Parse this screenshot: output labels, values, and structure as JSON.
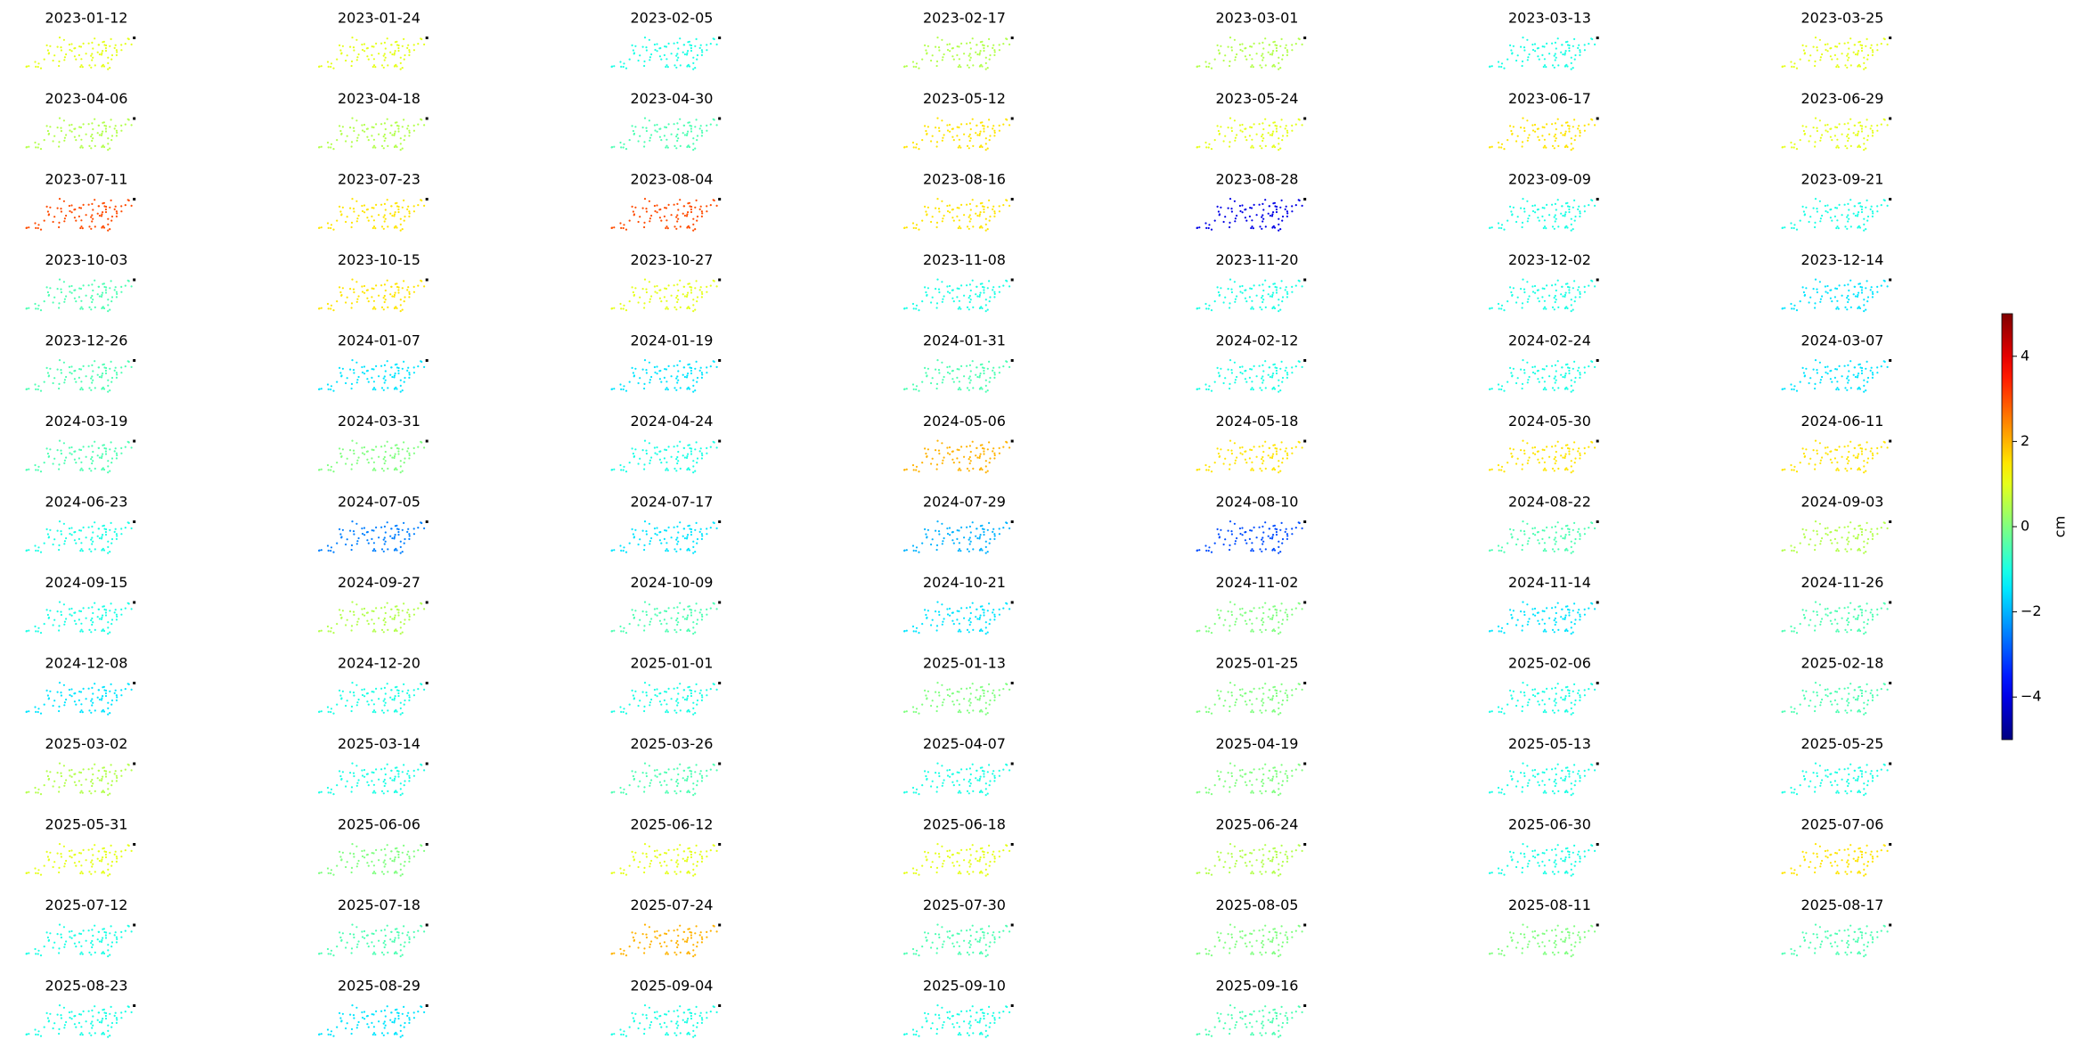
{
  "chart_data": {
    "type": "small-multiples",
    "colormap": "jet",
    "panels": [
      {
        "title": "2023-01-12",
        "value": 1
      },
      {
        "title": "2023-01-24",
        "value": 1
      },
      {
        "title": "2023-02-05",
        "value": -1
      },
      {
        "title": "2023-02-17",
        "value": 0.5
      },
      {
        "title": "2023-03-01",
        "value": 0.5
      },
      {
        "title": "2023-03-13",
        "value": -1
      },
      {
        "title": "2023-03-25",
        "value": 1
      },
      {
        "title": "2023-04-06",
        "value": 0.5
      },
      {
        "title": "2023-04-18",
        "value": 0.5
      },
      {
        "title": "2023-04-30",
        "value": -0.5
      },
      {
        "title": "2023-05-12",
        "value": 1.5
      },
      {
        "title": "2023-05-24",
        "value": 1
      },
      {
        "title": "2023-06-17",
        "value": 1.5
      },
      {
        "title": "2023-06-29",
        "value": 1
      },
      {
        "title": "2023-07-11",
        "value": 3
      },
      {
        "title": "2023-07-23",
        "value": 1.5
      },
      {
        "title": "2023-08-04",
        "value": 3
      },
      {
        "title": "2023-08-16",
        "value": 1.5
      },
      {
        "title": "2023-08-28",
        "value": -4
      },
      {
        "title": "2023-09-09",
        "value": -1
      },
      {
        "title": "2023-09-21",
        "value": -1
      },
      {
        "title": "2023-10-03",
        "value": -0.5
      },
      {
        "title": "2023-10-15",
        "value": 1.5
      },
      {
        "title": "2023-10-27",
        "value": 1
      },
      {
        "title": "2023-11-08",
        "value": -1
      },
      {
        "title": "2023-11-20",
        "value": -1
      },
      {
        "title": "2023-12-02",
        "value": -1
      },
      {
        "title": "2023-12-14",
        "value": -1.5
      },
      {
        "title": "2023-12-26",
        "value": -0.5
      },
      {
        "title": "2024-01-07",
        "value": -1.5
      },
      {
        "title": "2024-01-19",
        "value": -1.5
      },
      {
        "title": "2024-01-31",
        "value": -0.5
      },
      {
        "title": "2024-02-12",
        "value": -1
      },
      {
        "title": "2024-02-24",
        "value": -1
      },
      {
        "title": "2024-03-07",
        "value": -1.5
      },
      {
        "title": "2024-03-19",
        "value": -0.5
      },
      {
        "title": "2024-03-31",
        "value": 0
      },
      {
        "title": "2024-04-24",
        "value": -1
      },
      {
        "title": "2024-05-06",
        "value": 2
      },
      {
        "title": "2024-05-18",
        "value": 1.5
      },
      {
        "title": "2024-05-30",
        "value": 1.5
      },
      {
        "title": "2024-06-11",
        "value": 1.5
      },
      {
        "title": "2024-06-23",
        "value": -1
      },
      {
        "title": "2024-07-05",
        "value": -2.5
      },
      {
        "title": "2024-07-17",
        "value": -1.5
      },
      {
        "title": "2024-07-29",
        "value": -2
      },
      {
        "title": "2024-08-10",
        "value": -3
      },
      {
        "title": "2024-08-22",
        "value": -0.5
      },
      {
        "title": "2024-09-03",
        "value": 0.5
      },
      {
        "title": "2024-09-15",
        "value": -1
      },
      {
        "title": "2024-09-27",
        "value": 0.5
      },
      {
        "title": "2024-10-09",
        "value": -0.5
      },
      {
        "title": "2024-10-21",
        "value": -1.5
      },
      {
        "title": "2024-11-02",
        "value": 0
      },
      {
        "title": "2024-11-14",
        "value": -1.5
      },
      {
        "title": "2024-11-26",
        "value": -0.5
      },
      {
        "title": "2024-12-08",
        "value": -1.5
      },
      {
        "title": "2024-12-20",
        "value": -1
      },
      {
        "title": "2025-01-01",
        "value": -1
      },
      {
        "title": "2025-01-13",
        "value": 0
      },
      {
        "title": "2025-01-25",
        "value": 0
      },
      {
        "title": "2025-02-06",
        "value": -1
      },
      {
        "title": "2025-02-18",
        "value": -0.5
      },
      {
        "title": "2025-03-02",
        "value": 0.5
      },
      {
        "title": "2025-03-14",
        "value": -1
      },
      {
        "title": "2025-03-26",
        "value": -0.5
      },
      {
        "title": "2025-04-07",
        "value": -1
      },
      {
        "title": "2025-04-19",
        "value": 0
      },
      {
        "title": "2025-05-13",
        "value": -1
      },
      {
        "title": "2025-05-25",
        "value": -1
      },
      {
        "title": "2025-05-31",
        "value": 1
      },
      {
        "title": "2025-06-06",
        "value": 0
      },
      {
        "title": "2025-06-12",
        "value": 1
      },
      {
        "title": "2025-06-18",
        "value": 1
      },
      {
        "title": "2025-06-24",
        "value": 0.5
      },
      {
        "title": "2025-06-30",
        "value": -1
      },
      {
        "title": "2025-07-06",
        "value": 1.5
      },
      {
        "title": "2025-07-12",
        "value": -1
      },
      {
        "title": "2025-07-18",
        "value": -0.5
      },
      {
        "title": "2025-07-24",
        "value": 2
      },
      {
        "title": "2025-07-30",
        "value": -0.5
      },
      {
        "title": "2025-08-05",
        "value": 0
      },
      {
        "title": "2025-08-11",
        "value": 0
      },
      {
        "title": "2025-08-17",
        "value": -0.5
      },
      {
        "title": "2025-08-23",
        "value": -1
      },
      {
        "title": "2025-08-29",
        "value": -1.5
      },
      {
        "title": "2025-09-04",
        "value": -1
      },
      {
        "title": "2025-09-10",
        "value": -1
      },
      {
        "title": "2025-09-16",
        "value": -0.5
      }
    ],
    "colorbar": {
      "label": "cm",
      "ylim": [
        -5,
        5
      ],
      "yticks": [
        {
          "value": -4,
          "label": "−4"
        },
        {
          "value": -2,
          "label": "−2"
        },
        0,
        2,
        4
      ]
    }
  }
}
